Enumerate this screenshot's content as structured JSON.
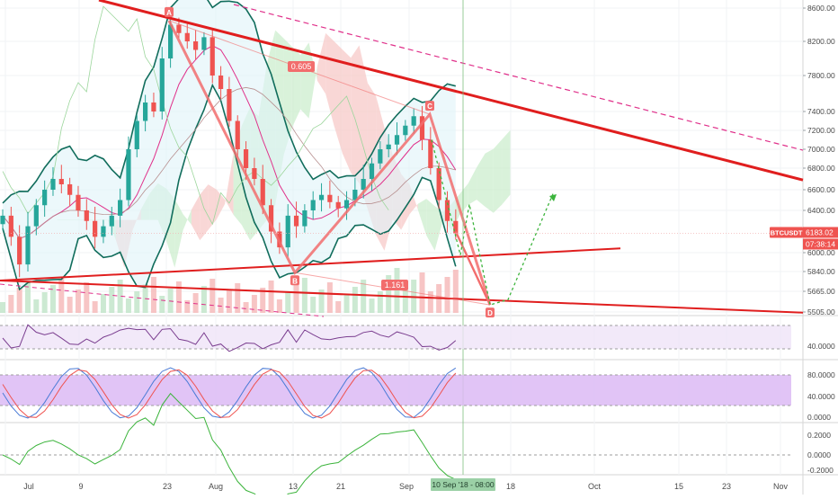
{
  "chart_data": {
    "type": "line",
    "symbol": "BTCUSDT",
    "last_price_label": "6183.02",
    "countdown_label": "07:38:14",
    "crosshair_date_label": "10 Sep '18 - 08:00",
    "price_axis": {
      "ticks": [
        {
          "value": 8600,
          "label": "8600.00"
        },
        {
          "value": 8200,
          "label": "8200.00"
        },
        {
          "value": 7800,
          "label": "7800.00"
        },
        {
          "value": 7400,
          "label": "7400.00"
        },
        {
          "value": 7200,
          "label": "7200.00"
        },
        {
          "value": 7000,
          "label": "7000.00"
        },
        {
          "value": 6800,
          "label": "6800.00"
        },
        {
          "value": 6600,
          "label": "6600.00"
        },
        {
          "value": 6400,
          "label": "6400.00"
        },
        {
          "value": 6000,
          "label": "6000.00"
        },
        {
          "value": 5840,
          "label": "5840.00"
        },
        {
          "value": 5665,
          "label": "5665.00"
        },
        {
          "value": 5505,
          "label": "5505.00"
        }
      ]
    },
    "time_axis": {
      "labels": [
        "Jul",
        "9",
        "23",
        "Aug",
        "13",
        "21",
        "Sep",
        "18",
        "Oct",
        "15",
        "23",
        "Nov"
      ]
    },
    "pattern": {
      "points": [
        {
          "label": "A",
          "price": 8450
        },
        {
          "label": "B",
          "price": 5830
        },
        {
          "label": "C",
          "price": 7370
        },
        {
          "label": "D",
          "price": 5560
        }
      ],
      "fib_labels": [
        "0.605",
        "1.161"
      ]
    },
    "close_series": [
      6350,
      6150,
      5900,
      6250,
      6450,
      6600,
      6700,
      6650,
      6550,
      6400,
      6300,
      6150,
      6250,
      6350,
      6500,
      7000,
      7300,
      7500,
      7400,
      8000,
      8400,
      8300,
      8200,
      8100,
      8250,
      7800,
      7650,
      7300,
      7000,
      6800,
      6700,
      6450,
      6200,
      6050,
      6350,
      6250,
      6400,
      6500,
      6550,
      6480,
      6420,
      6500,
      6600,
      6700,
      6850,
      7000,
      7050,
      7150,
      7250,
      7350,
      7100,
      6800,
      6500,
      6300,
      6183
    ],
    "panels": [
      {
        "name": "rsi",
        "ticks": [
          {
            "value": 40,
            "label": "40.0000"
          }
        ]
      },
      {
        "name": "stoch",
        "ticks": [
          {
            "value": 80,
            "label": "80.0000"
          },
          {
            "value": 40,
            "label": "40.0000"
          },
          {
            "value": 0,
            "label": "0.0000"
          }
        ]
      },
      {
        "name": "oscillator",
        "ticks": [
          {
            "value": 0.2,
            "label": "0.2000"
          },
          {
            "value": 0,
            "label": "0.0000"
          },
          {
            "value": -0.2,
            "label": "-0.2000"
          }
        ]
      }
    ],
    "colors": {
      "up": "#26a69a",
      "down": "#ef5350",
      "trendline": "#e01e1e",
      "pattern": "#f26d6d",
      "projection": "#3cb43c",
      "bollinger": "#116d5c",
      "ma": "#e0308a",
      "rsi_line": "#7a3d8f",
      "rsi_band": "#efe3f8",
      "stoch_band": "#dcbaf5",
      "stoch_k": "#4a7bd6",
      "stoch_d": "#ef5350",
      "osc_line": "#3cb43c",
      "cloud_bull": "#c9eccb",
      "cloud_bear": "#f7c6c4"
    }
  }
}
